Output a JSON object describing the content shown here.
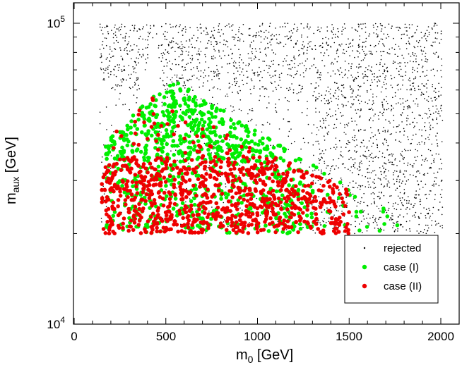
{
  "chart_data": {
    "type": "scatter",
    "title": "",
    "xlabel": "m",
    "xlabel_sub": "0",
    "xlabel_unit": " [GeV]",
    "ylabel": "m",
    "ylabel_sub": "aux",
    "ylabel_unit": " [GeV]",
    "xlim": [
      0,
      2100
    ],
    "ylim": [
      10000,
      105000
    ],
    "yscale": "log",
    "xticks": [
      0,
      500,
      1000,
      1500,
      2000
    ],
    "xtick_labels": [
      "0",
      "500",
      "1000",
      "1500",
      "2000"
    ],
    "yticks": [
      10000,
      100000
    ],
    "ytick_labels": [
      {
        "base": "10",
        "exp": "4"
      },
      {
        "base": "10",
        "exp": "5"
      }
    ],
    "legend_position": "bottom-right",
    "series": [
      {
        "name": "rejected",
        "color": "#000000",
        "marker": "dot",
        "count": 2600,
        "region": {
          "x_min": 140,
          "x_max": 2000,
          "y_min": 20000,
          "y_max": 100000,
          "lower_left_boundary": "m_aux >= 20000 at m0 ~ 150 rising along left edge to ~100000 at m0 ~ 450"
        }
      },
      {
        "name": "case (I)",
        "color": "#00ee00",
        "marker": "filled-circle",
        "count": 850,
        "region": {
          "x_min": 170,
          "x_max": 1800,
          "y_min": 20000,
          "y_max": 65000,
          "upper_boundary": "peaks near m_aux ~ 65000 at m0 ~ 550, falling to ~22000 at m0 ~ 1800"
        }
      },
      {
        "name": "case (II)",
        "color": "#ee0000",
        "marker": "filled-circle",
        "count": 900,
        "region": {
          "x_min": 150,
          "x_max": 1500,
          "y_min": 20000,
          "y_max": 60000,
          "density": "dense below m_aux ~ 35000, sparse up to ~60000"
        }
      }
    ]
  }
}
